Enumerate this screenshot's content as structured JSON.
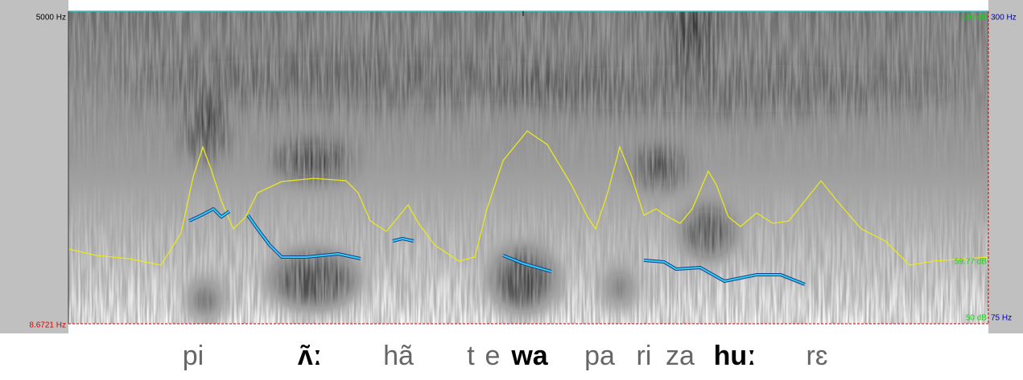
{
  "axis_labels": {
    "freq_top": "5000 Hz",
    "freq_bottom": "8.6721 Hz",
    "intensity_top": "100 dB",
    "pitch_top": "300 Hz",
    "intensity_mid": "59.77 dB",
    "intensity_bottom": "50 dB",
    "pitch_bottom": "75 Hz"
  },
  "transcription": [
    {
      "text": "pi",
      "bold": false
    },
    {
      "text": "ʌ̃ː",
      "bold": true
    },
    {
      "text": "hã",
      "bold": false
    },
    {
      "text": "t",
      "bold": false
    },
    {
      "text": "e",
      "bold": false
    },
    {
      "text": "wa",
      "bold": true
    },
    {
      "text": "pa",
      "bold": false
    },
    {
      "text": "ri",
      "bold": false
    },
    {
      "text": "za",
      "bold": false
    },
    {
      "text": "huː",
      "bold": true
    },
    {
      "text": "rɛ",
      "bold": false
    }
  ]
}
